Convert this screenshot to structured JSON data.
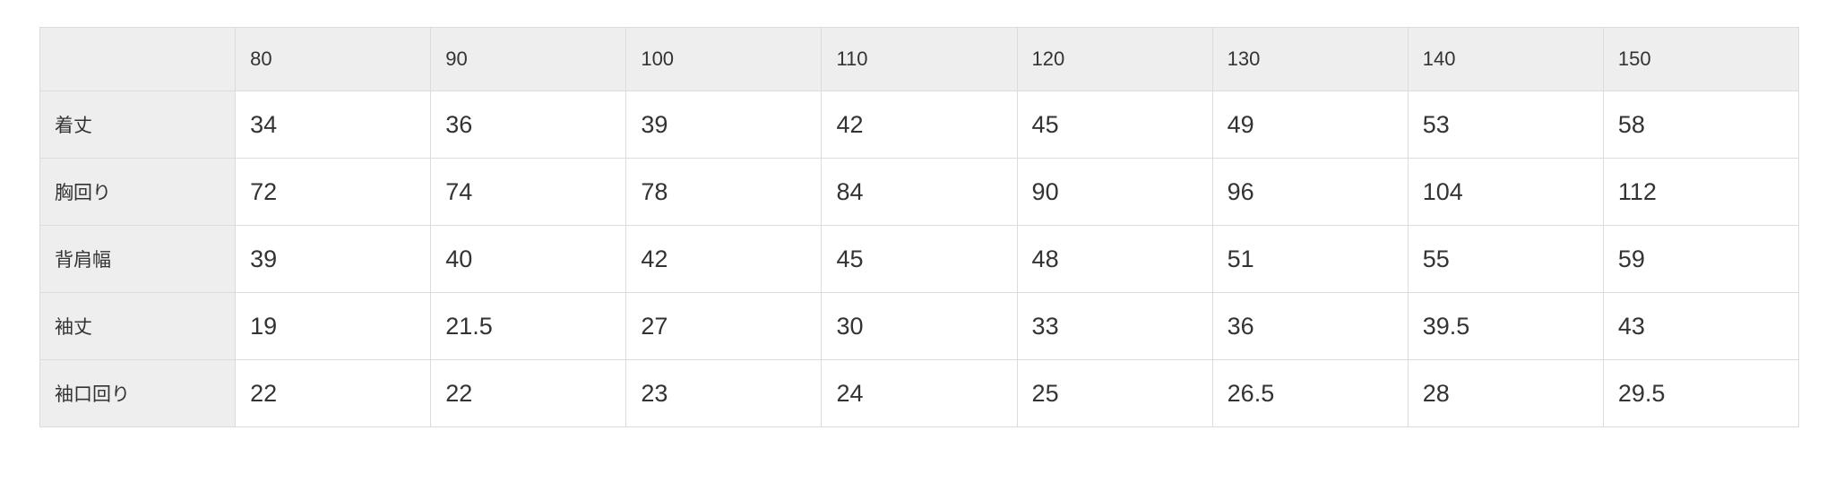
{
  "table": {
    "corner": "",
    "sizes": [
      "80",
      "90",
      "100",
      "110",
      "120",
      "130",
      "140",
      "150"
    ],
    "rows": [
      {
        "label": "着丈",
        "values": [
          "34",
          "36",
          "39",
          "42",
          "45",
          "49",
          "53",
          "58"
        ]
      },
      {
        "label": "胸回り",
        "values": [
          "72",
          "74",
          "78",
          "84",
          "90",
          "96",
          "104",
          "112"
        ]
      },
      {
        "label": "背肩幅",
        "values": [
          "39",
          "40",
          "42",
          "45",
          "48",
          "51",
          "55",
          "59"
        ]
      },
      {
        "label": "袖丈",
        "values": [
          "19",
          "21.5",
          "27",
          "30",
          "33",
          "36",
          "39.5",
          "43"
        ]
      },
      {
        "label": "袖口回り",
        "values": [
          "22",
          "22",
          "23",
          "24",
          "25",
          "26.5",
          "28",
          "29.5"
        ]
      }
    ]
  }
}
